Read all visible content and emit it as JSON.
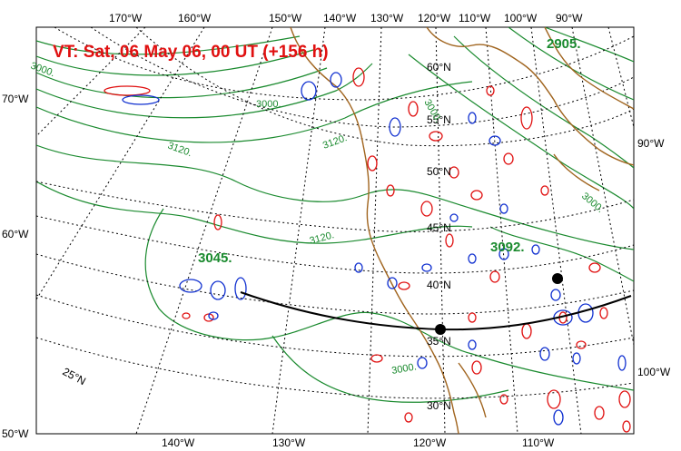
{
  "title": "VT:  Sat, 06 May 06, 00 UT (+156 h)",
  "colors": {
    "contour": "#1a8a2e",
    "positive": "#e01010",
    "negative": "#1030d0",
    "coast": "#a0641e",
    "graticule": "#000000",
    "track": "#000000"
  },
  "graticule": {
    "lon_labels_top": [
      "170°W",
      "160°W",
      "150°W",
      "140°W",
      "130°W",
      "120°W",
      "110°W",
      "100°W",
      "90°W"
    ],
    "lon_labels_bottom": [
      "140°W",
      "130°W",
      "120°W",
      "110°W"
    ],
    "lon_labels_left": [
      "70°W",
      "60°W",
      "50°W"
    ],
    "lon_labels_right": [
      "90°W",
      "100°W"
    ],
    "lat_labels": [
      "60°N",
      "55°N",
      "50°N",
      "45°N",
      "40°N",
      "35°N",
      "30°N",
      "25°N"
    ]
  },
  "contour_labels": {
    "small": [
      "3000.",
      "3000.",
      "3120.",
      "3120.",
      "3000.",
      "3120.",
      "3000."
    ],
    "large": [
      "3045.",
      "3092.",
      "2905."
    ]
  },
  "track": {
    "marker_count": 2
  }
}
